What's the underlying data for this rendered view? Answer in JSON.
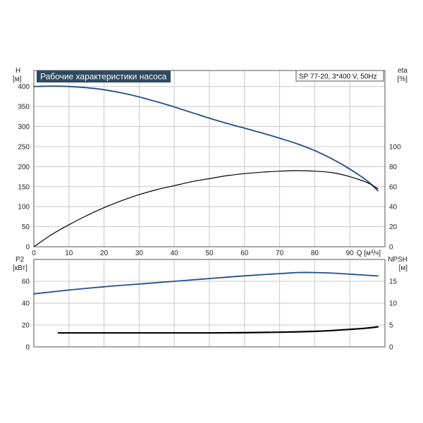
{
  "chart_data": [
    {
      "type": "line",
      "title": "Рабочие характеристики насоса",
      "info": "SP 77-20, 3*400 V, 50Hz",
      "xlabel": "Q [м³/ч]",
      "ylabel_left": [
        "H",
        "[м]"
      ],
      "ylabel_right": [
        "eta",
        "[%]"
      ],
      "xlim": [
        0,
        100
      ],
      "xticks": [
        0,
        10,
        20,
        30,
        40,
        50,
        60,
        70,
        80,
        90
      ],
      "ylim_left": [
        0,
        440
      ],
      "yticks_left": [
        0,
        50,
        100,
        150,
        200,
        250,
        300,
        350,
        400
      ],
      "ylim_right": [
        0,
        176
      ],
      "yticks_right": [
        0,
        20,
        40,
        60,
        80,
        100
      ],
      "grid": true,
      "series": [
        {
          "axis": "left",
          "color": "#1f4e8c",
          "x": [
            0,
            5,
            10,
            15,
            20,
            25,
            30,
            35,
            40,
            45,
            50,
            55,
            60,
            65,
            70,
            75,
            80,
            85,
            90,
            95,
            98
          ],
          "y": [
            400,
            401,
            400,
            397,
            392,
            384,
            374,
            362,
            349,
            335,
            321,
            308,
            296,
            284,
            271,
            257,
            240,
            219,
            194,
            164,
            140
          ]
        },
        {
          "axis": "right",
          "color": "#000000",
          "x": [
            0,
            5,
            10,
            15,
            20,
            25,
            30,
            35,
            40,
            45,
            50,
            55,
            60,
            65,
            70,
            75,
            80,
            85,
            90,
            95,
            98
          ],
          "y": [
            0,
            12,
            22,
            31,
            39,
            46,
            52,
            57,
            61,
            65,
            68,
            71,
            73,
            74.5,
            75.5,
            76,
            75.5,
            74,
            70,
            64,
            58
          ]
        }
      ]
    },
    {
      "type": "line",
      "ylabel_left": [
        "P2",
        "[кВт]"
      ],
      "ylabel_right": [
        "NPSH",
        "[м]"
      ],
      "xlim": [
        0,
        100
      ],
      "xticks": [
        0,
        10,
        20,
        30,
        40,
        50,
        60,
        70,
        80,
        90
      ],
      "ylim_left": [
        0,
        80
      ],
      "yticks_left": [
        0,
        20,
        40,
        60
      ],
      "ylim_right": [
        0,
        20
      ],
      "yticks_right": [
        0,
        5,
        10,
        15
      ],
      "grid": true,
      "series": [
        {
          "axis": "left",
          "color": "#1f4e8c",
          "x": [
            0,
            10,
            20,
            30,
            40,
            50,
            60,
            70,
            75,
            80,
            85,
            90,
            95,
            98
          ],
          "y": [
            48.5,
            52,
            55,
            57.5,
            60,
            62.5,
            65,
            67,
            68,
            68,
            67.5,
            66.5,
            65.5,
            65
          ]
        },
        {
          "axis": "right",
          "color": "#000000",
          "x": [
            7,
            10,
            20,
            30,
            40,
            50,
            60,
            70,
            80,
            85,
            90,
            95,
            98
          ],
          "y": [
            3.2,
            3.2,
            3.2,
            3.2,
            3.2,
            3.2,
            3.25,
            3.35,
            3.55,
            3.75,
            4.0,
            4.3,
            4.6
          ]
        }
      ]
    }
  ]
}
